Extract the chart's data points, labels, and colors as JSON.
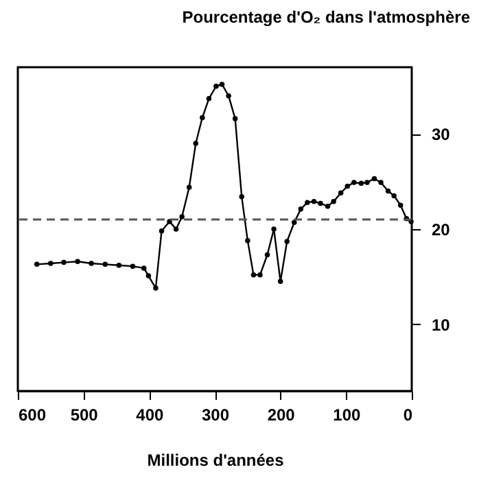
{
  "chart_data": {
    "type": "line",
    "xlabel": "Millions d'années",
    "ylabel": "Pourcentage d'O₂ dans l'atmosphère",
    "x": [
      571,
      550,
      530,
      509,
      488,
      467,
      446,
      425,
      408,
      401,
      390,
      381,
      369,
      359,
      350,
      339,
      329,
      319,
      309,
      298,
      289,
      279,
      269,
      259,
      250,
      241,
      231,
      220,
      210,
      200,
      190,
      179,
      169,
      159,
      149,
      139,
      128,
      119,
      108,
      98,
      88,
      77,
      68,
      57,
      47,
      36,
      27,
      17,
      8,
      1
    ],
    "series": [
      {
        "color": "#000000",
        "values": [
          16.3,
          16.4,
          16.5,
          16.6,
          16.4,
          16.3,
          16.2,
          16.1,
          15.9,
          15.1,
          13.8,
          19.8,
          20.8,
          20.0,
          21.3,
          24.4,
          29.0,
          31.7,
          33.7,
          35.0,
          35.2,
          34.0,
          31.6,
          23.4,
          18.8,
          15.2,
          15.2,
          17.3,
          20.0,
          14.5,
          18.7,
          20.7,
          22.1,
          22.8,
          22.9,
          22.7,
          22.4,
          22.9,
          23.8,
          24.5,
          24.9,
          24.8,
          24.9,
          25.3,
          24.9,
          24.0,
          23.5,
          22.5,
          21.1,
          20.8
        ]
      }
    ],
    "xlim": [
      600,
      0
    ],
    "xticks": [
      600,
      500,
      400,
      300,
      200,
      100,
      0
    ],
    "ylim": [
      3,
      37
    ],
    "yticks": [
      10,
      20,
      30
    ],
    "ref_lines": [
      {
        "axis": "y",
        "value": 21,
        "color": "#555555",
        "line_style": "dashed"
      }
    ],
    "marker": "circle",
    "line_style": "solid"
  }
}
